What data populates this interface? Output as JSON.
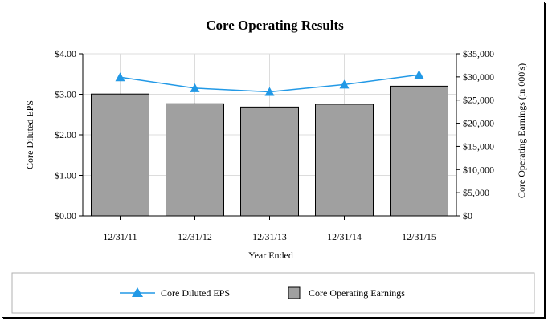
{
  "chart_data": {
    "type": "bar",
    "title": "Core Operating Results",
    "xlabel": "Year Ended",
    "ylabel_left": "Core Diluted EPS",
    "ylabel_right": "Core Operating Earnings (in 000's)",
    "categories": [
      "12/31/11",
      "12/31/12",
      "12/31/13",
      "12/31/14",
      "12/31/15"
    ],
    "series": [
      {
        "name": "Core Operating Earnings",
        "type": "bar",
        "axis": "right",
        "color": "#a0a0a0",
        "values": [
          26300,
          24200,
          23500,
          24100,
          28000
        ]
      },
      {
        "name": "Core Diluted EPS",
        "type": "line",
        "axis": "left",
        "color": "#2299e6",
        "marker": "triangle",
        "values": [
          3.42,
          3.15,
          3.06,
          3.24,
          3.48
        ]
      }
    ],
    "ylim_left": [
      0,
      4
    ],
    "yticks_left": [
      0,
      1,
      2,
      3,
      4
    ],
    "ytick_labels_left": [
      "$0.00",
      "$1.00",
      "$2.00",
      "$3.00",
      "$4.00"
    ],
    "ylim_right": [
      0,
      35000
    ],
    "yticks_right": [
      0,
      5000,
      10000,
      15000,
      20000,
      25000,
      30000,
      35000
    ],
    "ytick_labels_right": [
      "$0",
      "$5,000",
      "$10,000",
      "$15,000",
      "$20,000",
      "$25,000",
      "$30,000",
      "$35,000"
    ],
    "grid": true,
    "legend_position": "bottom"
  }
}
